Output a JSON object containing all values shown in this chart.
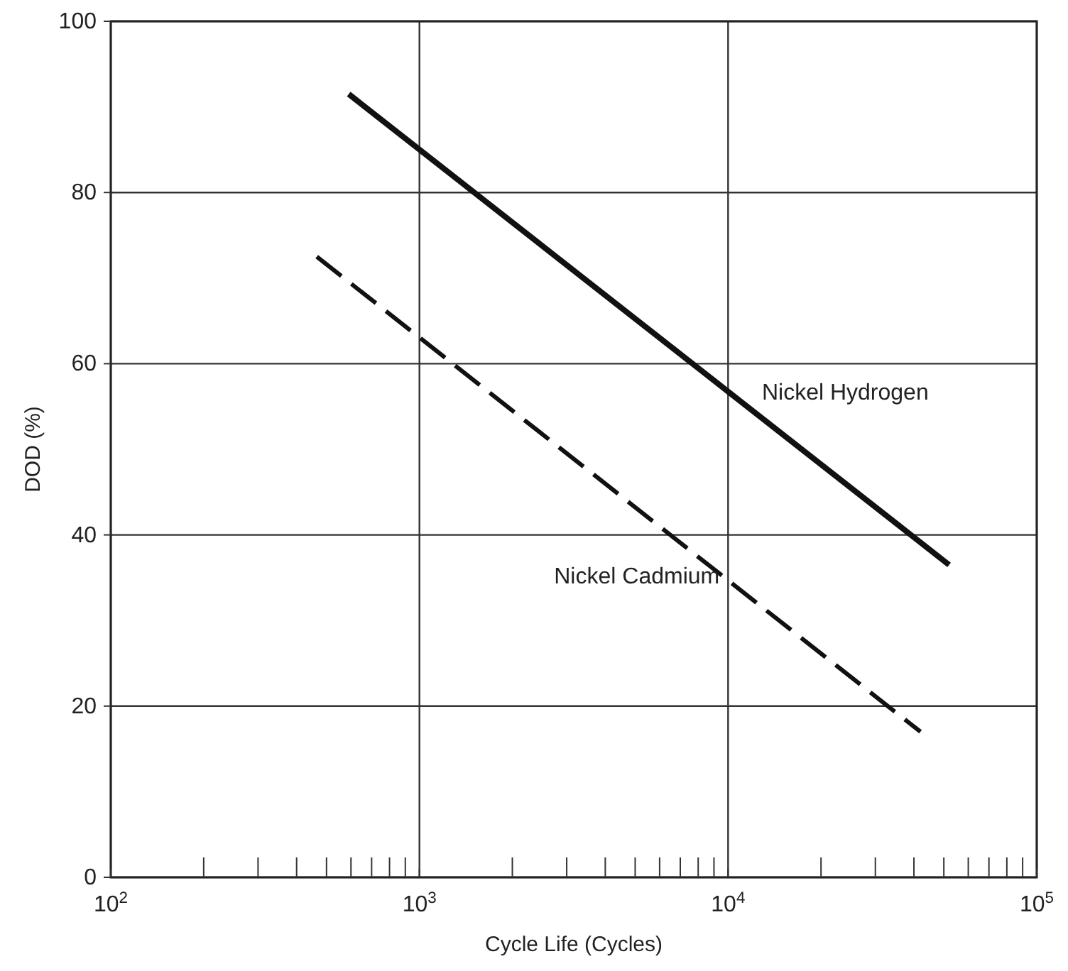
{
  "chart_data": {
    "type": "line",
    "xlabel": "Cycle Life (Cycles)",
    "ylabel": "DOD (%)",
    "log": "x",
    "xlim": [
      100,
      100000
    ],
    "xticks": [
      {
        "value": 100,
        "label": "10$^{2}$"
      },
      {
        "value": 200,
        "label": null
      },
      {
        "value": 300,
        "label": null
      },
      {
        "value": 400,
        "label": null
      },
      {
        "value": 500,
        "label": null
      },
      {
        "value": 600,
        "label": null
      },
      {
        "value": 700,
        "label": null
      },
      {
        "value": 800,
        "label": null
      },
      {
        "value": 900,
        "label": null
      },
      {
        "value": 1000,
        "label": "10$^{3}$"
      },
      {
        "value": 2000,
        "label": null
      },
      {
        "value": 3000,
        "label": null
      },
      {
        "value": 4000,
        "label": null
      },
      {
        "value": 5000,
        "label": null
      },
      {
        "value": 6000,
        "label": null
      },
      {
        "value": 7000,
        "label": null
      },
      {
        "value": 8000,
        "label": null
      },
      {
        "value": 9000,
        "label": null
      },
      {
        "value": 10000,
        "label": "10$^{4}$"
      },
      {
        "value": 20000,
        "label": null
      },
      {
        "value": 30000,
        "label": null
      },
      {
        "value": 40000,
        "label": null
      },
      {
        "value": 50000,
        "label": null
      },
      {
        "value": 60000,
        "label": null
      },
      {
        "value": 70000,
        "label": null
      },
      {
        "value": 80000,
        "label": null
      },
      {
        "value": 90000,
        "label": null
      },
      {
        "value": 100000,
        "label": "10$^{5}$"
      }
    ],
    "ylim": [
      0,
      100
    ],
    "yticks": [
      0,
      20,
      40,
      60,
      80,
      100
    ],
    "grid": true,
    "series": [
      {
        "name": "Nickel Hydrogen",
        "color": "#111111",
        "line_style": "solid",
        "x": [
          590,
          52000
        ],
        "values": [
          91.5,
          36.5
        ]
      },
      {
        "name": "Nickel Cadmium",
        "color": "#111111",
        "line_style": "dashed",
        "x": [
          465,
          42000
        ],
        "values": [
          72.5,
          17
        ]
      }
    ]
  }
}
